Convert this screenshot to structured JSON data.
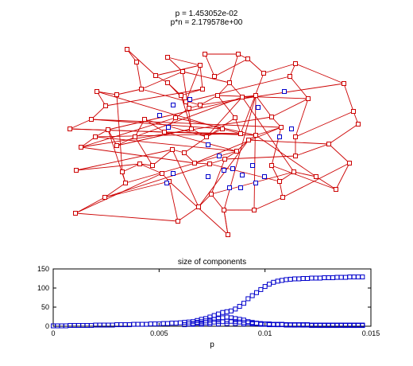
{
  "graph_panel": {
    "title_line1": "p = 1.453052e-02",
    "title_line2": "p*n = 2.179578e+00",
    "edge_color": "#cc0000",
    "giant_node_color": "#cc0000",
    "other_node_color": "#0000cc"
  },
  "chart_data": {
    "type": "scatter",
    "title": "size of components",
    "xlabel": "p",
    "ylabel": "",
    "xlim": [
      0,
      0.015
    ],
    "ylim": [
      0,
      150
    ],
    "xticks": [
      "0",
      "0.005",
      "0.01",
      "0.015"
    ],
    "yticks": [
      "0",
      "50",
      "100",
      "150"
    ],
    "grid": false,
    "marker": "square",
    "color": "#0000cc",
    "series": [
      {
        "x": [
          0.0,
          0.0002,
          0.0004,
          0.0006,
          0.0008,
          0.001,
          0.0012,
          0.0014,
          0.0016,
          0.0018,
          0.002,
          0.0022,
          0.0024,
          0.0026,
          0.0028,
          0.003,
          0.0032,
          0.0034,
          0.0036,
          0.0038,
          0.004,
          0.0042,
          0.0044,
          0.0046,
          0.0048,
          0.005,
          0.0052,
          0.0054,
          0.0056,
          0.0058,
          0.006,
          0.0062,
          0.0064,
          0.0066,
          0.0068,
          0.007,
          0.0072,
          0.0074,
          0.0076,
          0.0078,
          0.008,
          0.0082,
          0.0084,
          0.0086,
          0.0088,
          0.009,
          0.0092,
          0.0094,
          0.0096,
          0.0098,
          0.01,
          0.0102,
          0.0104,
          0.0106,
          0.0108,
          0.011,
          0.0112,
          0.0114,
          0.0116,
          0.0118,
          0.012,
          0.0122,
          0.0124,
          0.0126,
          0.0128,
          0.013,
          0.0132,
          0.0134,
          0.0136,
          0.0138,
          0.014,
          0.0142,
          0.0144,
          0.0146
        ],
        "y": [
          1,
          1,
          1,
          1,
          2,
          2,
          2,
          2,
          2,
          2,
          3,
          3,
          3,
          3,
          3,
          4,
          4,
          4,
          4,
          5,
          5,
          5,
          5,
          6,
          6,
          6,
          7,
          7,
          8,
          8,
          9,
          10,
          11,
          12,
          15,
          18,
          20,
          24,
          28,
          32,
          36,
          38,
          40,
          45,
          52,
          60,
          72,
          80,
          88,
          96,
          104,
          110,
          115,
          118,
          120,
          122,
          123,
          124,
          124,
          125,
          125,
          126,
          126,
          126,
          127,
          127,
          127,
          128,
          128,
          128,
          129,
          129,
          129,
          129
        ]
      },
      {
        "x": [
          0.0068,
          0.007,
          0.0072,
          0.0074,
          0.0076,
          0.0078,
          0.008,
          0.0082,
          0.0084,
          0.0086,
          0.0088,
          0.009,
          0.0092,
          0.0094,
          0.0096,
          0.0098,
          0.01,
          0.0102,
          0.0104,
          0.0106,
          0.0108,
          0.011,
          0.0112,
          0.0114,
          0.0116,
          0.0118,
          0.012,
          0.0122,
          0.0124,
          0.0126,
          0.0128,
          0.013,
          0.0132,
          0.0134,
          0.0136,
          0.0138,
          0.014,
          0.0142,
          0.0144,
          0.0146
        ],
        "y": [
          10,
          12,
          14,
          16,
          18,
          20,
          22,
          24,
          22,
          20,
          18,
          16,
          12,
          10,
          8,
          7,
          6,
          6,
          5,
          5,
          5,
          4,
          4,
          4,
          4,
          4,
          4,
          3,
          3,
          3,
          3,
          3,
          3,
          3,
          3,
          3,
          3,
          3,
          3,
          3
        ]
      },
      {
        "x": [
          0.0064,
          0.0066,
          0.0068,
          0.007,
          0.0072,
          0.0074,
          0.0076,
          0.0078,
          0.008,
          0.0082,
          0.0084,
          0.0086,
          0.0088,
          0.009,
          0.0092,
          0.0094,
          0.0096,
          0.0098,
          0.01,
          0.0102,
          0.0104,
          0.0106,
          0.0108,
          0.011,
          0.0112,
          0.0114,
          0.0116,
          0.0118,
          0.012,
          0.0122,
          0.0124,
          0.0126,
          0.0128,
          0.013,
          0.0132,
          0.0134,
          0.0136,
          0.0138,
          0.014,
          0.0142,
          0.0144,
          0.0146
        ],
        "y": [
          6,
          7,
          8,
          8,
          9,
          10,
          11,
          12,
          12,
          13,
          13,
          12,
          11,
          10,
          9,
          8,
          7,
          6,
          5,
          5,
          4,
          4,
          4,
          4,
          3,
          3,
          3,
          3,
          3,
          2,
          2,
          2,
          2,
          2,
          2,
          2,
          2,
          2,
          2,
          2,
          2,
          2
        ]
      },
      {
        "x": [
          0.0062,
          0.0066,
          0.007,
          0.0074,
          0.0078,
          0.0082,
          0.0086,
          0.009,
          0.0094,
          0.0098,
          0.0102,
          0.0106,
          0.011,
          0.0114,
          0.0118,
          0.0122,
          0.0126,
          0.013,
          0.0134,
          0.0138,
          0.0142,
          0.0146
        ],
        "y": [
          4,
          5,
          5,
          6,
          6,
          7,
          7,
          6,
          6,
          5,
          4,
          4,
          3,
          3,
          3,
          2,
          2,
          2,
          2,
          2,
          2,
          2
        ]
      }
    ]
  }
}
